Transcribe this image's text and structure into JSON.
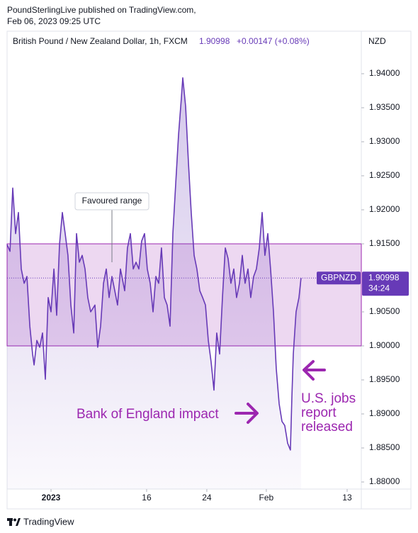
{
  "header": {
    "line1": "PoundSterlingLive published on TradingView.com,",
    "line2": "Feb 06, 2023 09:25 UTC"
  },
  "chart_data": {
    "type": "line",
    "title": "British Pound / New Zealand Dollar, 1h, FXCM",
    "legend_value": "1.90998",
    "legend_change": "+0.00147 (+0.08%)",
    "y_axis_label": "NZD",
    "series": [
      {
        "name": "GBPNZD",
        "color": "#673ab7",
        "x": [
          -4.43,
          -4.14,
          -3.86,
          -3.57,
          -3.29,
          -3,
          -2.71,
          -2.43,
          -2.14,
          -1.86,
          -1.71,
          -1.43,
          -1.14,
          -0.86,
          -0.57,
          -0.29,
          0,
          0.29,
          0.57,
          0.86,
          1.14,
          1.43,
          1.71,
          2,
          2.29,
          2.57,
          2.86,
          3.14,
          3.43,
          3.71,
          4,
          4.43,
          4.71,
          5,
          5.29,
          5.57,
          5.86,
          6.14,
          6.43,
          6.71,
          7,
          7.43,
          7.71,
          8,
          8.29,
          8.57,
          8.86,
          9.14,
          9.43,
          9.71,
          10,
          10.29,
          10.57,
          10.86,
          11.14,
          11.43,
          11.71,
          12,
          12.29,
          12.57,
          12.86,
          13.14,
          13.29,
          13.57,
          13.86,
          14.14,
          14.43,
          14.71,
          15,
          15.29,
          15.57,
          15.86,
          16.14,
          16.43,
          16.71,
          17,
          17.29,
          17.57,
          17.86,
          18.14,
          18.43,
          18.71,
          19,
          19.29,
          19.57,
          19.86,
          20.14,
          20.43,
          20.71,
          21,
          21.29,
          21.57,
          21.86,
          22.14,
          22.43,
          22.71,
          23,
          23.29,
          23.57,
          23.86,
          24.14,
          24.29,
          24.43,
          24.71,
          25,
          25.21
        ],
        "values": [
          1.9149,
          1.9139,
          1.9232,
          1.9165,
          1.9196,
          1.9113,
          1.9092,
          1.9102,
          1.9029,
          1.8988,
          1.8972,
          1.9008,
          1.8998,
          1.9019,
          1.8951,
          1.9071,
          1.905,
          1.9113,
          1.9045,
          1.9149,
          1.9196,
          1.9165,
          1.9133,
          1.906,
          1.9019,
          1.9165,
          1.9123,
          1.9133,
          1.9113,
          1.9071,
          1.905,
          1.906,
          1.8998,
          1.9029,
          1.9092,
          1.9113,
          1.9071,
          1.9102,
          1.9081,
          1.906,
          1.9113,
          1.9081,
          1.9144,
          1.9165,
          1.9113,
          1.9123,
          1.9113,
          1.9154,
          1.9165,
          1.9113,
          1.9092,
          1.905,
          1.9102,
          1.9092,
          1.9144,
          1.9071,
          1.906,
          1.9029,
          1.9165,
          1.9238,
          1.931,
          1.9363,
          1.9394,
          1.9352,
          1.9269,
          1.9196,
          1.9133,
          1.9113,
          1.9081,
          1.9071,
          1.906,
          1.9008,
          1.8977,
          1.8935,
          1.9019,
          1.8988,
          1.9071,
          1.9144,
          1.9128,
          1.9092,
          1.9113,
          1.9071,
          1.9092,
          1.9133,
          1.9092,
          1.9113,
          1.9071,
          1.9102,
          1.9113,
          1.9144,
          1.9196,
          1.9133,
          1.9165,
          1.9113,
          1.905,
          1.8967,
          1.8915,
          1.8889,
          1.8883,
          1.8857,
          1.8847,
          1.8925,
          1.8988,
          1.905,
          1.9071,
          1.90998
        ]
      }
    ],
    "last": {
      "value": 1.90998,
      "countdown": "34:24"
    },
    "band": {
      "label": "Favoured range",
      "ymin": 1.9,
      "ymax": 1.915,
      "color": "#9c27b0"
    },
    "annotations": [
      {
        "text": "Bank of England impact"
      },
      {
        "text": [
          "U.S. jobs",
          "report",
          "released"
        ]
      }
    ],
    "annotation_color": "#9c27b0",
    "xlim": [
      -4.43,
      31.29
    ],
    "xticks": [
      {
        "value": 0,
        "label": "2023"
      },
      {
        "value": 9.64,
        "label": "16"
      },
      {
        "value": 15.71,
        "label": "24"
      },
      {
        "value": 21.71,
        "label": "Feb"
      },
      {
        "value": 29.86,
        "label": "13"
      }
    ],
    "ylim": [
      1.87896,
      1.94625
    ],
    "yticks": [
      {
        "value": 1.88,
        "label": "1.88000"
      },
      {
        "value": 1.885,
        "label": "1.88500"
      },
      {
        "value": 1.89,
        "label": "1.89000"
      },
      {
        "value": 1.895,
        "label": "1.89500"
      },
      {
        "value": 1.9,
        "label": "1.90000"
      },
      {
        "value": 1.905,
        "label": "1.90500"
      },
      {
        "value": 1.91,
        "label": "1.91000"
      },
      {
        "value": 1.915,
        "label": "1.91500"
      },
      {
        "value": 1.92,
        "label": "1.92000"
      },
      {
        "value": 1.925,
        "label": "1.92500"
      },
      {
        "value": 1.93,
        "label": "1.93000"
      },
      {
        "value": 1.935,
        "label": "1.93500"
      },
      {
        "value": 1.94,
        "label": "1.94000"
      }
    ],
    "grid": false
  },
  "footer": {
    "brand": "TradingView"
  }
}
